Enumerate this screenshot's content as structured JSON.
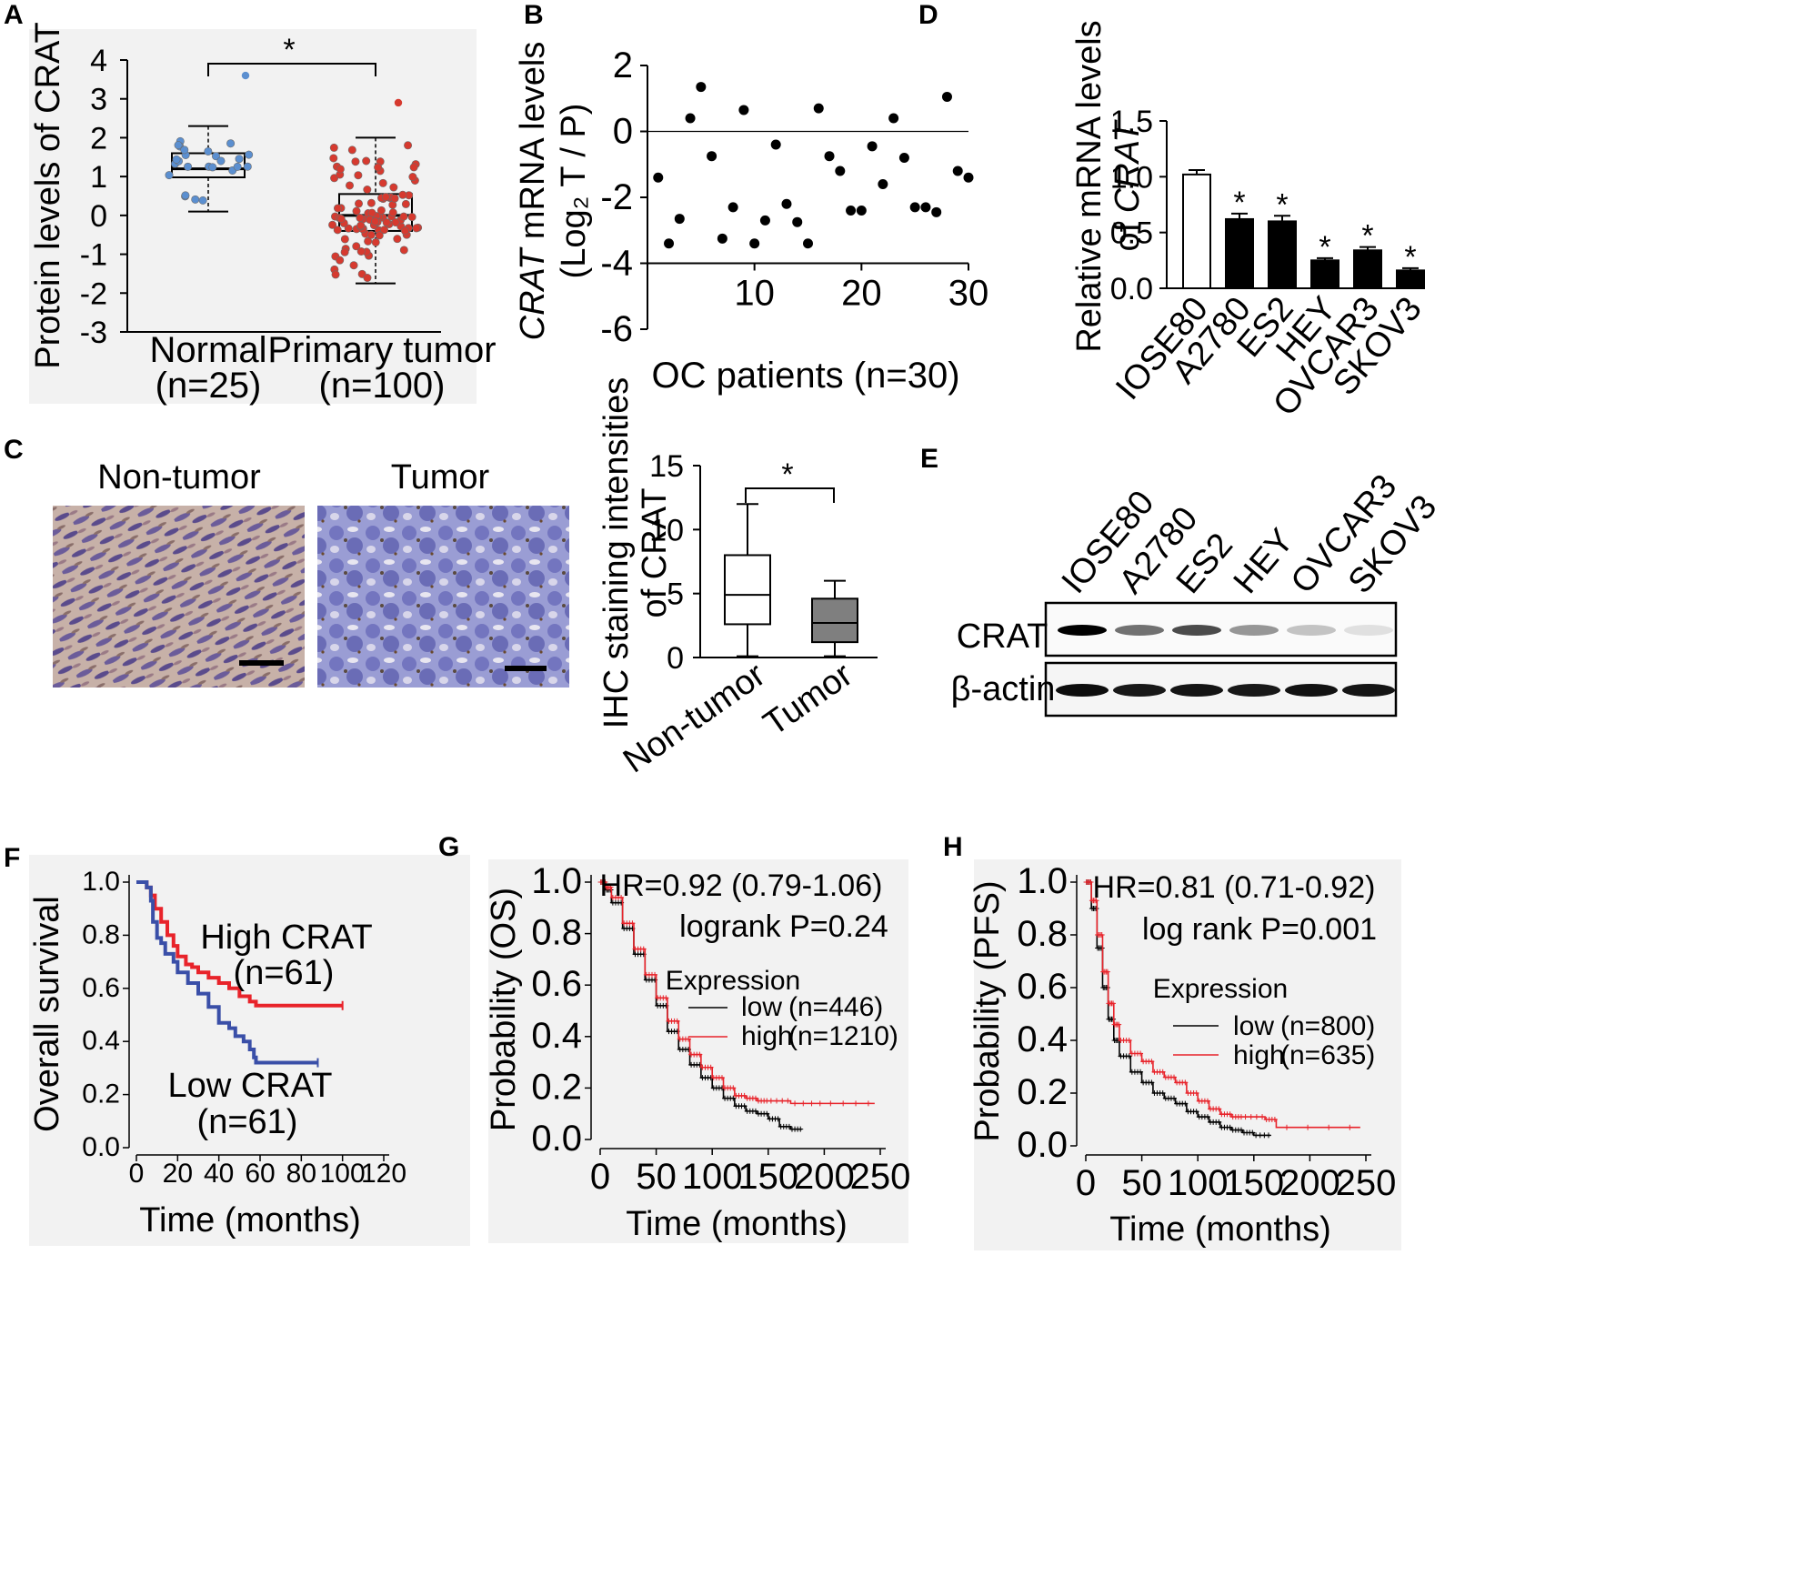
{
  "chart_data": [
    {
      "panel": "A",
      "type": "box",
      "ylabel": "Protein levels of CRAT",
      "ylim": [
        -3,
        4
      ],
      "yticks": [
        "4",
        "3",
        "2",
        "1",
        "0",
        "-1",
        "-2",
        "-3"
      ],
      "categories": [
        "Normal",
        "Primary tumor"
      ],
      "category_counts": [
        "(n=25)",
        "(n=100)"
      ],
      "boxes": [
        {
          "name": "Normal",
          "min": 0.1,
          "q1": 0.98,
          "median": 1.2,
          "q3": 1.6,
          "max": 2.3,
          "color": "#5b8fd0"
        },
        {
          "name": "Primary tumor",
          "min": -1.75,
          "q1": -0.4,
          "median": 0.0,
          "q3": 0.55,
          "max": 2.0,
          "color": "#d63a2f"
        }
      ],
      "significance": "*"
    },
    {
      "panel": "B",
      "type": "scatter",
      "ylabel_italic": "CRAT",
      "ylabel_rest": " mRNA levels",
      "ylabel2": "(Log₂ T / P)",
      "xlabel": "OC patients (n=30)",
      "ylim": [
        -6,
        2
      ],
      "xlim": [
        0,
        30
      ],
      "yticks": [
        "2",
        "0",
        "-2",
        "-4",
        "-6"
      ],
      "xticks": [
        "10",
        "20",
        "30"
      ],
      "x": [
        1,
        2,
        3,
        4,
        5,
        6,
        7,
        8,
        9,
        10,
        11,
        12,
        13,
        14,
        15,
        16,
        17,
        18,
        19,
        20,
        21,
        22,
        23,
        24,
        25,
        26,
        27,
        28,
        29,
        30
      ],
      "y": [
        -1.4,
        -3.4,
        -2.65,
        0.4,
        1.35,
        -0.75,
        -3.25,
        -2.3,
        0.65,
        -3.4,
        -2.7,
        -0.4,
        -2.2,
        -2.75,
        -3.4,
        0.7,
        -0.75,
        -1.2,
        -2.4,
        -2.4,
        -0.45,
        -1.6,
        0.4,
        -0.8,
        -2.3,
        -2.3,
        -2.45,
        1.05,
        -1.2,
        -1.4
      ]
    },
    {
      "panel": "C",
      "type": "box",
      "images": [
        "Non-tumor",
        "Tumor"
      ],
      "ylabel": "IHC staining intensities",
      "ylabel2": "of CRAT",
      "ylim": [
        0,
        15
      ],
      "yticks": [
        "15",
        "10",
        "5",
        "0"
      ],
      "categories": [
        "Non-tumor",
        "Tumor"
      ],
      "boxes": [
        {
          "name": "Non-tumor",
          "min": 0.1,
          "q1": 2.6,
          "median": 4.9,
          "q3": 8.0,
          "max": 12.0,
          "color": "#ffffff"
        },
        {
          "name": "Tumor",
          "min": 0.1,
          "q1": 1.2,
          "median": 2.7,
          "q3": 4.6,
          "max": 6.0,
          "color": "#7f7f7f"
        }
      ],
      "significance": "*"
    },
    {
      "panel": "D",
      "type": "bar",
      "ylabel": "Relative mRNA levels",
      "ylabel2_pre": "of ",
      "ylabel2_italic": "CRAT",
      "ylim": [
        0,
        1.5
      ],
      "yticks": [
        "1.5",
        "1.0",
        "0.5",
        "0.0"
      ],
      "categories": [
        "IOSE80",
        "A2780",
        "ES2",
        "HEY",
        "OVCAR3",
        "SKOV3"
      ],
      "values": [
        1.02,
        0.62,
        0.6,
        0.25,
        0.34,
        0.16
      ],
      "errors": [
        0.04,
        0.05,
        0.05,
        0.02,
        0.03,
        0.02
      ],
      "significance": [
        "",
        "*",
        "*",
        "*",
        "*",
        "*"
      ]
    },
    {
      "panel": "E",
      "type": "blot",
      "lanes": [
        "IOSE80",
        "A2780",
        "ES2",
        "HEY",
        "OVCAR3",
        "SKOV3"
      ],
      "rows": [
        "CRAT",
        "β-actin"
      ],
      "crat_intensity": [
        1.0,
        0.55,
        0.7,
        0.4,
        0.22,
        0.1
      ],
      "actin_intensity": [
        0.95,
        0.9,
        0.92,
        0.9,
        0.93,
        0.92
      ]
    },
    {
      "panel": "F",
      "type": "line",
      "ylabel": "Overall survival",
      "xlabel": "Time (months)",
      "xlim": [
        0,
        120
      ],
      "ylim": [
        0,
        1
      ],
      "xticks": [
        "0",
        "20",
        "40",
        "60",
        "80",
        "100",
        "120"
      ],
      "yticks": [
        "1.0",
        "0.8",
        "0.6",
        "0.4",
        "0.2",
        "0.0"
      ],
      "series": [
        {
          "name": "High CRAT",
          "n": "(n=61)",
          "color": "#e8232a",
          "x": [
            0,
            5,
            7,
            9,
            12,
            15,
            18,
            20,
            24,
            27,
            30,
            35,
            40,
            45,
            50,
            55,
            58,
            60,
            70,
            80,
            100
          ],
          "y": [
            1.0,
            0.98,
            0.95,
            0.9,
            0.85,
            0.8,
            0.76,
            0.72,
            0.69,
            0.68,
            0.66,
            0.64,
            0.62,
            0.6,
            0.57,
            0.55,
            0.535,
            0.535,
            0.535,
            0.535,
            0.535
          ]
        },
        {
          "name": "Low CRAT",
          "n": "(n=61)",
          "color": "#3a4fa8",
          "x": [
            0,
            5,
            7,
            8,
            10,
            12,
            14,
            18,
            20,
            25,
            30,
            35,
            40,
            45,
            48,
            52,
            55,
            57,
            58,
            60,
            70,
            88
          ],
          "y": [
            1.0,
            0.98,
            0.93,
            0.85,
            0.79,
            0.77,
            0.73,
            0.7,
            0.66,
            0.62,
            0.58,
            0.53,
            0.47,
            0.45,
            0.42,
            0.4,
            0.37,
            0.34,
            0.32,
            0.32,
            0.32,
            0.32
          ]
        }
      ]
    },
    {
      "panel": "G",
      "type": "line",
      "ylabel": "Probability (OS)",
      "xlabel": "Time (months)",
      "xlim": [
        0,
        250
      ],
      "ylim": [
        0,
        1
      ],
      "xticks": [
        "0",
        "50",
        "100",
        "150",
        "200",
        "250"
      ],
      "yticks": [
        "1.0",
        "0.8",
        "0.6",
        "0.4",
        "0.2",
        "0.0"
      ],
      "hr": "HR=0.92 (0.79-1.06)",
      "p": "logrank P=0.24",
      "legend_title": "Expression",
      "series": [
        {
          "name": "low",
          "n": "(n=446)",
          "color": "#000000",
          "x": [
            0,
            5,
            10,
            20,
            30,
            40,
            50,
            60,
            70,
            80,
            90,
            100,
            110,
            120,
            130,
            140,
            150,
            160,
            170,
            180
          ],
          "y": [
            1.0,
            0.97,
            0.92,
            0.82,
            0.72,
            0.62,
            0.52,
            0.42,
            0.35,
            0.29,
            0.24,
            0.2,
            0.16,
            0.13,
            0.11,
            0.1,
            0.08,
            0.05,
            0.04,
            0.04
          ]
        },
        {
          "name": "high",
          "n": "(n=1210)",
          "color": "#e8232a",
          "x": [
            0,
            5,
            10,
            20,
            30,
            40,
            50,
            60,
            70,
            80,
            90,
            100,
            110,
            120,
            130,
            140,
            150,
            170,
            200,
            245
          ],
          "y": [
            1.0,
            0.98,
            0.94,
            0.84,
            0.74,
            0.64,
            0.55,
            0.46,
            0.39,
            0.33,
            0.28,
            0.24,
            0.2,
            0.17,
            0.16,
            0.15,
            0.15,
            0.14,
            0.14,
            0.14
          ]
        }
      ]
    },
    {
      "panel": "H",
      "type": "line",
      "ylabel": "Probability (PFS)",
      "xlabel": "Time (months)",
      "xlim": [
        0,
        250
      ],
      "ylim": [
        0,
        1
      ],
      "xticks": [
        "0",
        "50",
        "100",
        "150",
        "200",
        "250"
      ],
      "yticks": [
        "1.0",
        "0.8",
        "0.6",
        "0.4",
        "0.2",
        "0.0"
      ],
      "hr": "HR=0.81 (0.71-0.92)",
      "p": "log rank P=0.001",
      "legend_title": "Expression",
      "series": [
        {
          "name": "low",
          "n": "(n=800)",
          "color": "#000000",
          "x": [
            0,
            5,
            10,
            15,
            20,
            25,
            30,
            40,
            50,
            60,
            70,
            80,
            90,
            100,
            110,
            120,
            130,
            140,
            150,
            165
          ],
          "y": [
            1.0,
            0.9,
            0.75,
            0.6,
            0.48,
            0.4,
            0.34,
            0.28,
            0.24,
            0.2,
            0.18,
            0.16,
            0.13,
            0.11,
            0.09,
            0.07,
            0.06,
            0.05,
            0.04,
            0.04
          ]
        },
        {
          "name": "high",
          "n": "(n=635)",
          "color": "#e8232a",
          "x": [
            0,
            5,
            10,
            15,
            20,
            25,
            30,
            40,
            50,
            60,
            70,
            80,
            90,
            100,
            110,
            120,
            130,
            140,
            160,
            170,
            245
          ],
          "y": [
            1.0,
            0.93,
            0.8,
            0.66,
            0.54,
            0.46,
            0.4,
            0.35,
            0.32,
            0.28,
            0.26,
            0.24,
            0.2,
            0.17,
            0.14,
            0.12,
            0.11,
            0.11,
            0.1,
            0.07,
            0.07
          ]
        }
      ]
    }
  ]
}
